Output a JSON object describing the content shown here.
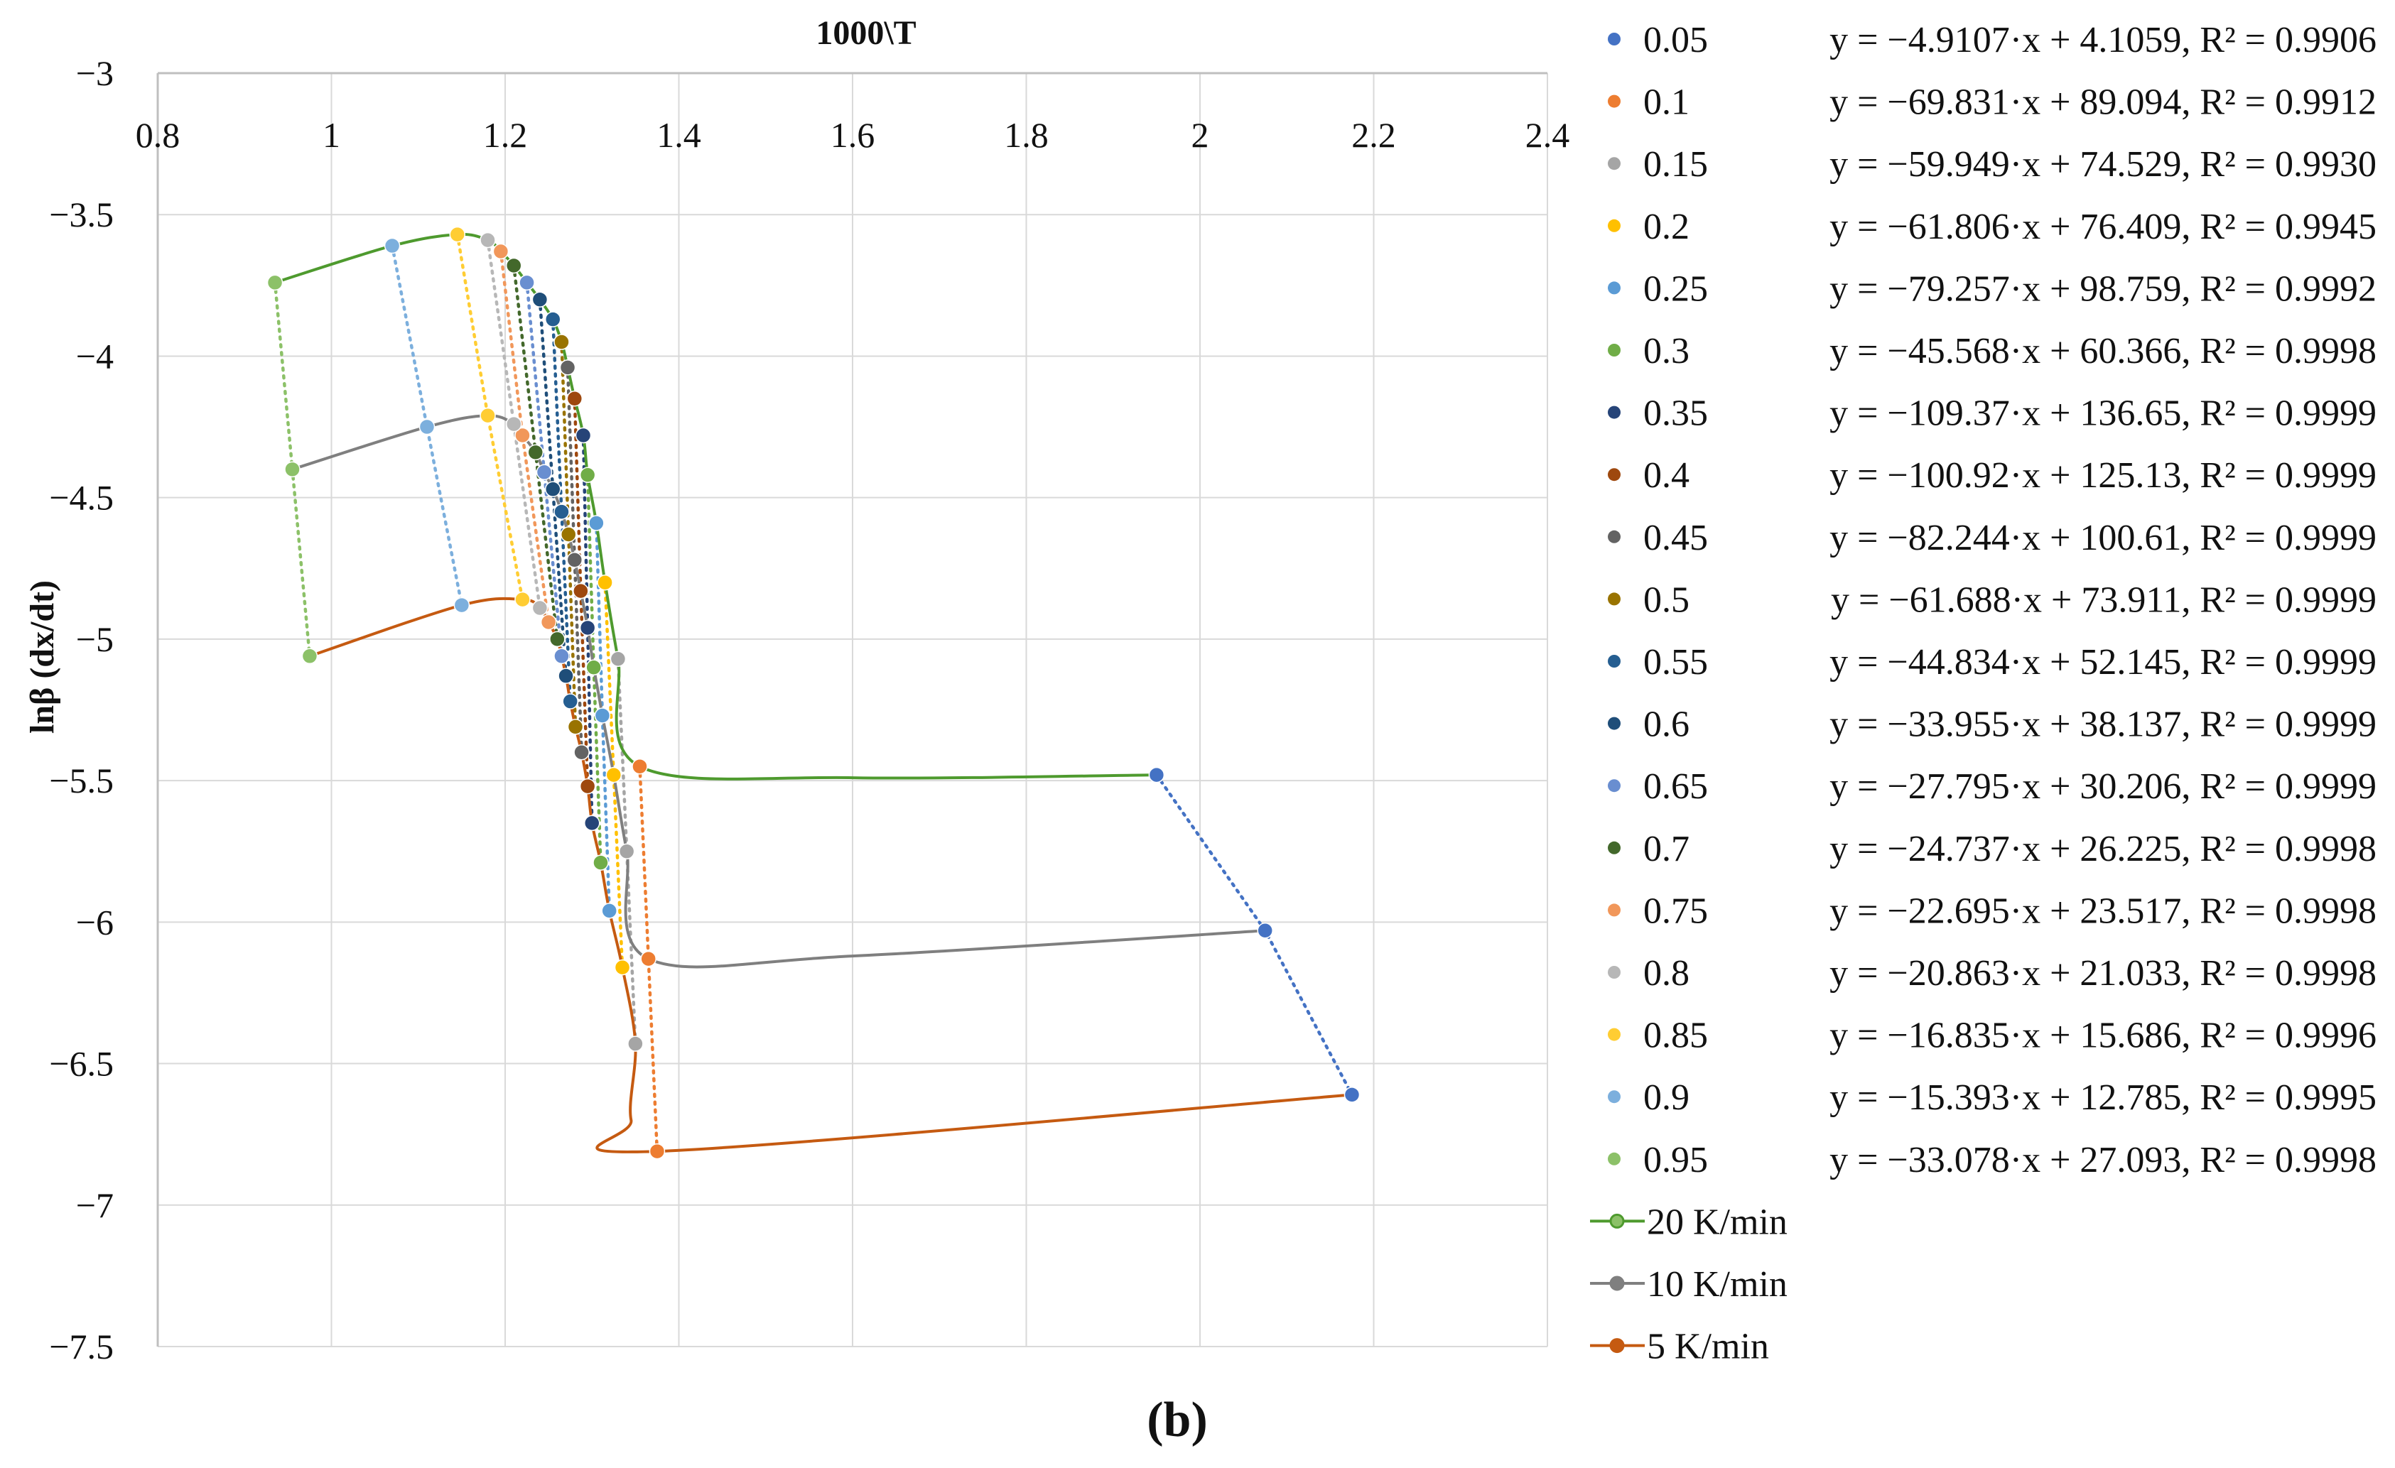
{
  "chart_data": {
    "type": "scatter",
    "title": "1000\\T",
    "xlabel": "1000\\T",
    "ylabel": "lnβ (dx/dt)",
    "panel_label": "(b)",
    "x_axis_position": "top",
    "xlim": [
      0.8,
      2.4
    ],
    "ylim": [
      -7.5,
      -3
    ],
    "x_ticks": [
      0.8,
      1,
      1.2,
      1.4,
      1.6,
      1.8,
      2,
      2.2,
      2.4
    ],
    "x_tick_labels": [
      "0.8",
      "1",
      "1.2",
      "1.4",
      "1.6",
      "1.8",
      "2",
      "2.2",
      "2.4"
    ],
    "y_ticks": [
      -3,
      -3.5,
      -4,
      -4.5,
      -5,
      -5.5,
      -6,
      -6.5,
      -7,
      -7.5
    ],
    "y_tick_labels": [
      "−3",
      "−3.5",
      "−4",
      "−4.5",
      "−5",
      "−5.5",
      "−6",
      "−6.5",
      "−7",
      "−7.5"
    ],
    "grid": true,
    "legend_position": "right",
    "conversion_series": [
      {
        "name": "0.05",
        "color": "#4472C4",
        "equation": "y = −4.9107·x + 4.1059, R² = 0.9906",
        "points": [
          [
            1.95,
            -5.48
          ],
          [
            2.075,
            -6.03
          ],
          [
            2.175,
            -6.61
          ]
        ]
      },
      {
        "name": "0.1",
        "color": "#ED7D31",
        "equation": "y = −69.831·x + 89.094, R² = 0.9912",
        "points": [
          [
            1.355,
            -5.45
          ],
          [
            1.365,
            -6.13
          ],
          [
            1.375,
            -6.81
          ]
        ]
      },
      {
        "name": "0.15",
        "color": "#A5A5A5",
        "equation": "y = −59.949·x + 74.529, R² = 0.9930",
        "points": [
          [
            1.33,
            -5.07
          ],
          [
            1.34,
            -5.75
          ],
          [
            1.35,
            -6.43
          ]
        ]
      },
      {
        "name": "0.2",
        "color": "#FFC000",
        "equation": "y = −61.806·x + 76.409, R² = 0.9945",
        "points": [
          [
            1.315,
            -4.8
          ],
          [
            1.325,
            -5.48
          ],
          [
            1.335,
            -6.16
          ]
        ]
      },
      {
        "name": "0.25",
        "color": "#5B9BD5",
        "equation": "y = −79.257·x + 98.759, R² = 0.9992",
        "points": [
          [
            1.305,
            -4.59
          ],
          [
            1.312,
            -5.27
          ],
          [
            1.32,
            -5.96
          ]
        ]
      },
      {
        "name": "0.3",
        "color": "#70AD47",
        "equation": "y = −45.568·x + 60.366, R² = 0.9998",
        "points": [
          [
            1.295,
            -4.42
          ],
          [
            1.302,
            -5.1
          ],
          [
            1.31,
            -5.79
          ]
        ]
      },
      {
        "name": "0.35",
        "color": "#264478",
        "equation": "y = −109.37·x + 136.65, R² = 0.9999",
        "points": [
          [
            1.29,
            -4.28
          ],
          [
            1.295,
            -4.96
          ],
          [
            1.3,
            -5.65
          ]
        ]
      },
      {
        "name": "0.4",
        "color": "#9E480E",
        "equation": "y = −100.92·x + 125.13, R² = 0.9999",
        "points": [
          [
            1.28,
            -4.15
          ],
          [
            1.287,
            -4.83
          ],
          [
            1.295,
            -5.52
          ]
        ]
      },
      {
        "name": "0.45",
        "color": "#636363",
        "equation": "y = −82.244·x + 100.61, R² = 0.9999",
        "points": [
          [
            1.272,
            -4.04
          ],
          [
            1.28,
            -4.72
          ],
          [
            1.288,
            -5.4
          ]
        ]
      },
      {
        "name": "0.5",
        "color": "#997300",
        "equation": "y = −61.688·x + 73.911, R² = 0.9999",
        "points": [
          [
            1.265,
            -3.95
          ],
          [
            1.273,
            -4.63
          ],
          [
            1.281,
            -5.31
          ]
        ]
      },
      {
        "name": "0.55",
        "color": "#255E91",
        "equation": "y = −44.834·x + 52.145, R² = 0.9999",
        "points": [
          [
            1.255,
            -3.87
          ],
          [
            1.265,
            -4.55
          ],
          [
            1.275,
            -5.22
          ]
        ]
      },
      {
        "name": "0.6",
        "color": "#1F4E79",
        "equation": "y = −33.955·x + 38.137, R² = 0.9999",
        "points": [
          [
            1.24,
            -3.8
          ],
          [
            1.255,
            -4.47
          ],
          [
            1.27,
            -5.13
          ]
        ]
      },
      {
        "name": "0.65",
        "color": "#698ED0",
        "equation": "y = −27.795·x + 30.206, R² = 0.9999",
        "points": [
          [
            1.225,
            -3.74
          ],
          [
            1.245,
            -4.41
          ],
          [
            1.265,
            -5.06
          ]
        ]
      },
      {
        "name": "0.7",
        "color": "#43682B",
        "equation": "y = −24.737·x + 26.225, R² = 0.9998",
        "points": [
          [
            1.21,
            -3.68
          ],
          [
            1.235,
            -4.34
          ],
          [
            1.26,
            -5.0
          ]
        ]
      },
      {
        "name": "0.75",
        "color": "#F1975A",
        "equation": "y = −22.695·x + 23.517, R² = 0.9998",
        "points": [
          [
            1.195,
            -3.63
          ],
          [
            1.22,
            -4.28
          ],
          [
            1.25,
            -4.94
          ]
        ]
      },
      {
        "name": "0.8",
        "color": "#B7B7B7",
        "equation": "y = −20.863·x + 21.033, R² = 0.9998",
        "points": [
          [
            1.18,
            -3.59
          ],
          [
            1.21,
            -4.24
          ],
          [
            1.24,
            -4.89
          ]
        ]
      },
      {
        "name": "0.85",
        "color": "#FFCD33",
        "equation": "y = −16.835·x + 15.686, R² = 0.9996",
        "points": [
          [
            1.145,
            -3.57
          ],
          [
            1.18,
            -4.21
          ],
          [
            1.22,
            -4.86
          ]
        ]
      },
      {
        "name": "0.9",
        "color": "#7CAFDD",
        "equation": "y = −15.393·x + 12.785, R² = 0.9995",
        "points": [
          [
            1.07,
            -3.61
          ],
          [
            1.11,
            -4.25
          ],
          [
            1.15,
            -4.88
          ]
        ]
      },
      {
        "name": "0.95",
        "color": "#8CC168",
        "equation": "y = −33.078·x + 27.093, R² = 0.9998",
        "points": [
          [
            0.935,
            -3.74
          ],
          [
            0.955,
            -4.4
          ],
          [
            0.975,
            -5.06
          ]
        ]
      }
    ],
    "rate_series": [
      {
        "name": "20 K/min",
        "color": "#4E9A2E",
        "marker_color": "#8CC168",
        "points": [
          [
            0.935,
            -3.74
          ],
          [
            1.07,
            -3.61
          ],
          [
            1.145,
            -3.57
          ],
          [
            1.18,
            -3.59
          ],
          [
            1.195,
            -3.63
          ],
          [
            1.21,
            -3.68
          ],
          [
            1.225,
            -3.74
          ],
          [
            1.24,
            -3.8
          ],
          [
            1.255,
            -3.87
          ],
          [
            1.265,
            -3.95
          ],
          [
            1.272,
            -4.04
          ],
          [
            1.28,
            -4.15
          ],
          [
            1.29,
            -4.28
          ],
          [
            1.295,
            -4.42
          ],
          [
            1.305,
            -4.59
          ],
          [
            1.315,
            -4.8
          ],
          [
            1.33,
            -5.07
          ],
          [
            1.355,
            -5.45
          ],
          [
            1.6,
            -5.49
          ],
          [
            1.95,
            -5.48
          ]
        ]
      },
      {
        "name": "10 K/min",
        "color": "#7F7F7F",
        "marker_color": "#7F7F7F",
        "points": [
          [
            0.955,
            -4.4
          ],
          [
            1.11,
            -4.25
          ],
          [
            1.18,
            -4.21
          ],
          [
            1.21,
            -4.24
          ],
          [
            1.22,
            -4.28
          ],
          [
            1.235,
            -4.34
          ],
          [
            1.245,
            -4.41
          ],
          [
            1.255,
            -4.47
          ],
          [
            1.265,
            -4.55
          ],
          [
            1.273,
            -4.63
          ],
          [
            1.28,
            -4.72
          ],
          [
            1.287,
            -4.83
          ],
          [
            1.295,
            -4.96
          ],
          [
            1.302,
            -5.1
          ],
          [
            1.312,
            -5.27
          ],
          [
            1.325,
            -5.48
          ],
          [
            1.34,
            -5.75
          ],
          [
            1.365,
            -6.13
          ],
          [
            1.6,
            -6.12
          ],
          [
            2.075,
            -6.03
          ]
        ]
      },
      {
        "name": "5 K/min",
        "color": "#C55A11",
        "marker_color": "#C55A11",
        "points": [
          [
            0.975,
            -5.06
          ],
          [
            1.15,
            -4.88
          ],
          [
            1.22,
            -4.86
          ],
          [
            1.24,
            -4.89
          ],
          [
            1.25,
            -4.94
          ],
          [
            1.26,
            -5.0
          ],
          [
            1.265,
            -5.06
          ],
          [
            1.27,
            -5.13
          ],
          [
            1.275,
            -5.22
          ],
          [
            1.281,
            -5.31
          ],
          [
            1.288,
            -5.4
          ],
          [
            1.295,
            -5.52
          ],
          [
            1.3,
            -5.65
          ],
          [
            1.31,
            -5.79
          ],
          [
            1.32,
            -5.96
          ],
          [
            1.335,
            -6.16
          ],
          [
            1.35,
            -6.43
          ],
          [
            1.345,
            -6.7
          ],
          [
            1.375,
            -6.81
          ],
          [
            2.175,
            -6.61
          ]
        ]
      }
    ]
  }
}
